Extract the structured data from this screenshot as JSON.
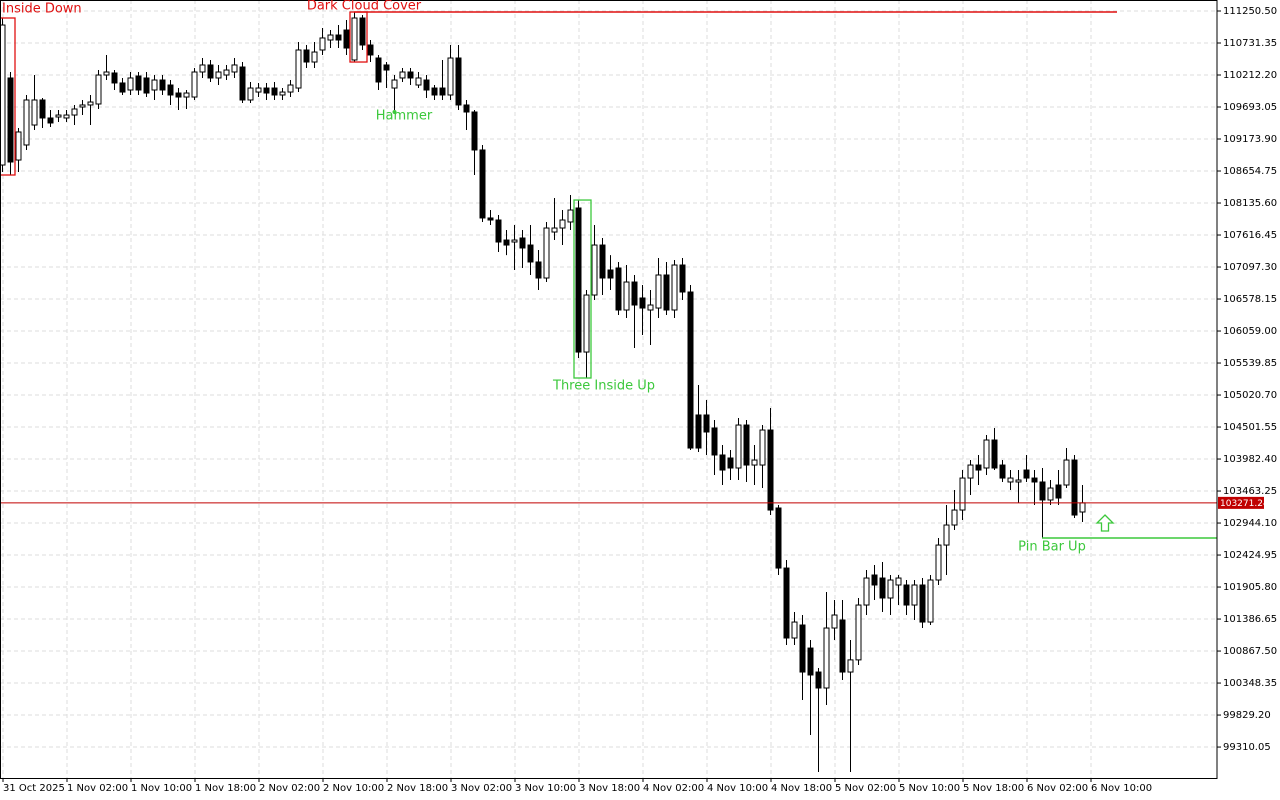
{
  "chart_data": {
    "type": "candlestick",
    "grid": true,
    "bull_color": "#ffffff",
    "bear_color": "#000000",
    "outline_color": "#000000",
    "price_line_color": "#c00000",
    "current_price": 103271.24,
    "ylim": [
      98808,
      111429
    ],
    "yticks": [
      {
        "value": 111250.5,
        "label": "111250.50"
      },
      {
        "value": 110731.35,
        "label": "110731.35"
      },
      {
        "value": 110212.2,
        "label": "110212.20"
      },
      {
        "value": 109693.05,
        "label": "109693.05"
      },
      {
        "value": 109173.9,
        "label": "109173.90"
      },
      {
        "value": 108654.75,
        "label": "108654.75"
      },
      {
        "value": 108135.6,
        "label": "108135.60"
      },
      {
        "value": 107616.45,
        "label": "107616.45"
      },
      {
        "value": 107097.3,
        "label": "107097.30"
      },
      {
        "value": 106578.15,
        "label": "106578.15"
      },
      {
        "value": 106059.0,
        "label": "106059.00"
      },
      {
        "value": 105539.85,
        "label": "105539.85"
      },
      {
        "value": 105020.7,
        "label": "105020.70"
      },
      {
        "value": 104501.55,
        "label": "104501.55"
      },
      {
        "value": 103982.4,
        "label": "103982.40"
      },
      {
        "value": 103463.25,
        "label": "103463.25"
      },
      {
        "value": 102944.1,
        "label": "102944.10"
      },
      {
        "value": 102424.95,
        "label": "102424.95"
      },
      {
        "value": 101905.8,
        "label": "101905.80"
      },
      {
        "value": 101386.65,
        "label": "101386.65"
      },
      {
        "value": 100867.5,
        "label": "100867.50"
      },
      {
        "value": 100348.35,
        "label": "100348.35"
      },
      {
        "value": 99829.2,
        "label": "99829.20"
      },
      {
        "value": 99310.05,
        "label": "99310.05"
      }
    ],
    "xticks": [
      "31 Oct 2025",
      "1 Nov 02:00",
      "1 Nov 10:00",
      "1 Nov 18:00",
      "2 Nov 02:00",
      "2 Nov 10:00",
      "2 Nov 18:00",
      "3 Nov 02:00",
      "3 Nov 10:00",
      "3 Nov 18:00",
      "4 Nov 02:00",
      "4 Nov 10:00",
      "4 Nov 18:00",
      "5 Nov 02:00",
      "5 Nov 10:00",
      "5 Nov 18:00",
      "6 Nov 02:00",
      "6 Nov 10:00"
    ],
    "annotations": [
      {
        "text": "Inside Down",
        "color": "#e01010"
      },
      {
        "text": "Dark Cloud Cover",
        "color": "#e01010"
      },
      {
        "text": "Hammer",
        "color": "#3cc83c"
      },
      {
        "text": "Three Inside Up",
        "color": "#3cc83c"
      },
      {
        "text": "Pin Bar Up",
        "color": "#3cc83c"
      }
    ],
    "open": [
      108752,
      110164,
      108833,
      109077,
      109401,
      109807,
      109515,
      109531,
      109515,
      109563,
      109693,
      109726,
      109742,
      110212,
      110245,
      110083,
      109969,
      110196,
      110164,
      109969,
      110131,
      110050,
      109920,
      109855,
      109855,
      110261,
      110375,
      110164,
      110212,
      110261,
      110342,
      109807,
      109936,
      110001,
      110001,
      109888,
      109936,
      110001,
      110618,
      110423,
      110618,
      110780,
      110861,
      110942,
      110456,
      111137,
      110699,
      110488,
      110375,
      110001,
      110164,
      110261,
      110050,
      110131,
      110001,
      110001,
      109888,
      110488,
      109726,
      109612,
      108996,
      107893,
      107860,
      107535,
      107503,
      107568,
      107454,
      107179,
      106919,
      107665,
      107730,
      107828,
      108055,
      105718,
      106643,
      107454,
      107049,
      107081,
      106400,
      106854,
      106595,
      106400,
      106432,
      106968,
      106400,
      107130,
      106692,
      104697,
      104697,
      104486,
      104048,
      103999,
      103837,
      104534,
      103885,
      103885,
      104453,
      103188,
      102214,
      101079,
      101290,
      100916,
      100527,
      100268,
      101241,
      101371,
      100527,
      100724,
      101614,
      102101,
      102052,
      101728,
      101939,
      101939,
      101614,
      101939,
      101338,
      102020,
      102587,
      102912,
      103155,
      103674,
      103885,
      103837,
      104291,
      103885,
      103610,
      103610,
      103804,
      103674,
      103610,
      103318,
      103561,
      103561,
      103966,
      103123
    ],
    "high": [
      111137,
      110261,
      109353,
      109888,
      110212,
      109839,
      109645,
      109645,
      109645,
      109726,
      109807,
      109888,
      110293,
      110537,
      110293,
      110164,
      110261,
      110261,
      110261,
      110212,
      110212,
      110131,
      110001,
      109969,
      110326,
      110488,
      110456,
      110375,
      110375,
      110488,
      110423,
      110099,
      110083,
      110083,
      110099,
      110001,
      110131,
      110748,
      110699,
      110748,
      110975,
      110942,
      111023,
      111105,
      111234,
      111186,
      110780,
      110537,
      110423,
      110212,
      110326,
      110326,
      110261,
      110212,
      110050,
      110456,
      110699,
      110699,
      109807,
      109645,
      109077,
      108022,
      107941,
      107698,
      107779,
      107698,
      107779,
      107373,
      107828,
      108217,
      108022,
      108266,
      108184,
      106724,
      107779,
      107568,
      107290,
      107179,
      107130,
      106968,
      106805,
      106724,
      107244,
      107179,
      107211,
      107244,
      106805,
      105183,
      104940,
      104615,
      104210,
      104129,
      104648,
      104615,
      104210,
      104534,
      104810,
      103236,
      102344,
      101501,
      101452,
      101046,
      100592,
      101825,
      101695,
      101695,
      101046,
      101728,
      102182,
      102263,
      102312,
      102101,
      102101,
      102020,
      102020,
      102052,
      102101,
      102701,
      103236,
      103480,
      103804,
      103966,
      104048,
      104372,
      104486,
      103966,
      103804,
      103804,
      104048,
      103804,
      103837,
      103642,
      103804,
      104161,
      104048,
      103561
    ],
    "low": [
      108639,
      108590,
      108639,
      108996,
      109320,
      109353,
      109369,
      109450,
      109450,
      109401,
      109563,
      109401,
      109661,
      110131,
      109969,
      109888,
      109888,
      109888,
      109855,
      109807,
      109888,
      109726,
      109645,
      109661,
      109807,
      110164,
      110099,
      110050,
      110131,
      110164,
      109758,
      109758,
      109855,
      109807,
      109807,
      109807,
      109855,
      109936,
      110326,
      110326,
      110537,
      110650,
      110650,
      110537,
      110423,
      110618,
      110423,
      109969,
      110001,
      109645,
      110099,
      110050,
      110001,
      109839,
      109807,
      109807,
      109807,
      109645,
      109320,
      108590,
      107828,
      107779,
      107341,
      107290,
      107049,
      107081,
      106968,
      106724,
      106854,
      107535,
      107454,
      107698,
      105621,
      105297,
      106562,
      106643,
      106724,
      106319,
      106270,
      105783,
      105994,
      105832,
      106270,
      106319,
      106270,
      106562,
      104129,
      104096,
      104048,
      103723,
      103561,
      103642,
      103642,
      103610,
      103561,
      103512,
      103074,
      102101,
      100965,
      100965,
      100073,
      99505,
      98905,
      99992,
      101046,
      100397,
      98905,
      100641,
      101452,
      101695,
      101501,
      101452,
      101614,
      101452,
      101371,
      101241,
      101290,
      101939,
      102101,
      102831,
      102993,
      103399,
      103561,
      103723,
      103804,
      103610,
      103480,
      103269,
      103610,
      103236,
      102701,
      103236,
      103236,
      103512,
      103025,
      102961
    ],
    "close": [
      111023,
      108801,
      109288,
      109807,
      109807,
      109515,
      109434,
      109563,
      109563,
      109661,
      109726,
      109774,
      110212,
      110261,
      110083,
      109936,
      110164,
      109969,
      109920,
      110131,
      109969,
      109888,
      109855,
      109920,
      110261,
      110375,
      110164,
      110261,
      110293,
      110375,
      109807,
      110001,
      110001,
      109920,
      109888,
      109936,
      110050,
      110618,
      110423,
      110585,
      110813,
      110861,
      110780,
      110650,
      111137,
      110699,
      110537,
      110099,
      110293,
      110131,
      110261,
      110164,
      110164,
      109969,
      109888,
      109888,
      110488,
      109726,
      109612,
      108996,
      107893,
      107860,
      107503,
      107454,
      107535,
      107406,
      107179,
      106919,
      107730,
      107730,
      107860,
      108022,
      105718,
      106643,
      107454,
      106919,
      106919,
      106400,
      106854,
      106481,
      106432,
      106481,
      106968,
      106400,
      107130,
      106692,
      104161,
      104161,
      104421,
      104048,
      103804,
      103837,
      104534,
      103885,
      103966,
      104453,
      103155,
      102214,
      101079,
      101338,
      100527,
      100479,
      100268,
      101241,
      101452,
      100527,
      100724,
      101614,
      102052,
      101939,
      101728,
      102020,
      102052,
      101614,
      101939,
      101338,
      102020,
      102587,
      102912,
      103155,
      103674,
      103885,
      103804,
      104291,
      103837,
      103674,
      103674,
      103642,
      103674,
      103610,
      103318,
      103512,
      103350,
      103966,
      103074,
      103271.24
    ]
  }
}
